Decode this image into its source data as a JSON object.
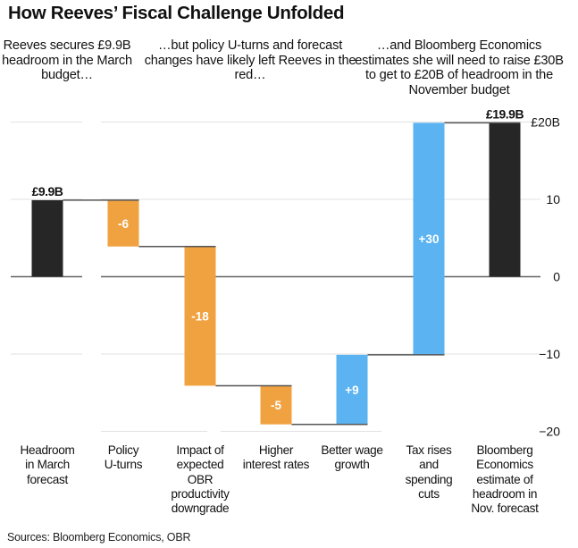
{
  "title": "How Reeves’ Fiscal Challenge Unfolded",
  "annotations": [
    "Reeves secures £9.9B headroom in the March budget…",
    "…but policy U-turns and forecast changes have likely left Reeves in the red…",
    "…and Bloomberg Economics estimates she will need to raise £30B to get to £20B of headroom in the November budget"
  ],
  "source": "Sources: Bloomberg Economics, OBR",
  "colors": {
    "total": "#262626",
    "decrease": "#F0A241",
    "increase": "#5BB3F2",
    "connector": "#555555",
    "zero_line": "#666666",
    "grid": "#e2e2e2",
    "bar_label_inside": "#ffffff"
  },
  "chart_data": {
    "type": "bar",
    "subtype": "waterfall",
    "title": "How Reeves’ Fiscal Challenge Unfolded",
    "xlabel": "",
    "ylabel": "",
    "ylim": [
      -20,
      20
    ],
    "yticks": [
      -20,
      -10,
      0,
      10,
      20
    ],
    "ytick_labels": [
      "−20",
      "−10",
      "0",
      "10",
      "£20B"
    ],
    "grid": true,
    "categories": [
      "Headroom in March forecast",
      "Policy U-turns",
      "Impact of expected OBR productivity downgrade",
      "Higher interest rates",
      "Better wage growth",
      "Tax rises and spending cuts",
      "Bloomberg Economics estimate of headroom in Nov. forecast"
    ],
    "category_lines": [
      [
        "Headroom",
        "in March",
        "forecast"
      ],
      [
        "Policy",
        "U-turns"
      ],
      [
        "Impact of",
        "expected",
        "OBR",
        "productivity",
        "downgrade"
      ],
      [
        "Higher",
        "interest rates"
      ],
      [
        "Better wage",
        "growth"
      ],
      [
        "Tax rises",
        "and",
        "spending",
        "cuts"
      ],
      [
        "Bloomberg",
        "Economics",
        "estimate of",
        "headroom in",
        "Nov. forecast"
      ]
    ],
    "values": [
      9.9,
      -6,
      -18,
      -5,
      9,
      30,
      19.9
    ],
    "kinds": [
      "total",
      "decrease",
      "decrease",
      "decrease",
      "increase",
      "increase",
      "total"
    ],
    "data_labels": [
      "£9.9B",
      "-6",
      "-18",
      "-5",
      "+9",
      "+30",
      "£19.9B"
    ],
    "legend": "none"
  }
}
